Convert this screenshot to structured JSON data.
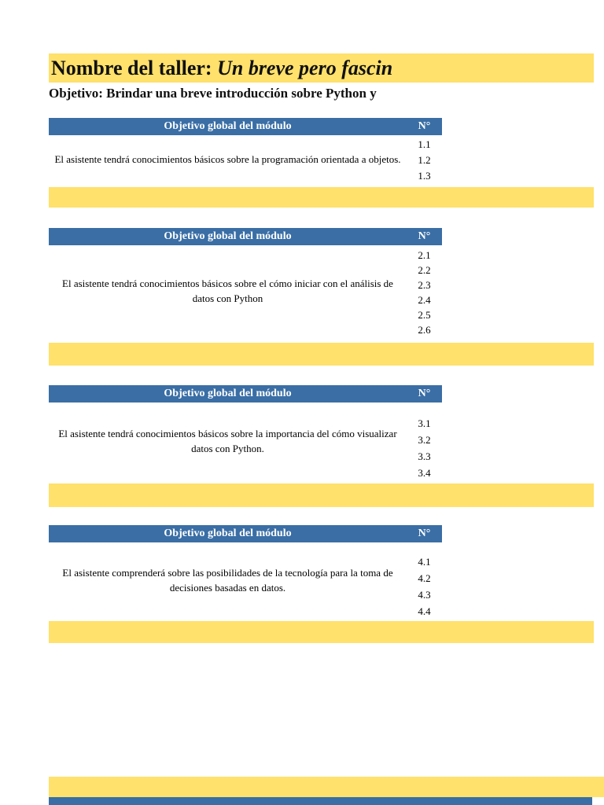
{
  "colors": {
    "banner_yellow": "#FFE16B",
    "header_blue": "#3A6EA5",
    "header_text": "#FFFFFF",
    "body_text": "#000000"
  },
  "title": {
    "prefix": "Nombre del taller: ",
    "name_visible": "Un breve pero fascin"
  },
  "objective_line": "Objetivo: Brindar una breve introducción sobre Python y",
  "table": {
    "header_label": "Objetivo global del módulo",
    "number_col_label": "N°"
  },
  "sections": [
    {
      "objective": "El asistente tendrá conocimientos básicos sobre la programación orientada a objetos.",
      "numbers": [
        "1.1",
        "1.2",
        "1.3"
      ]
    },
    {
      "objective": "El asistente tendrá conocimientos básicos sobre el cómo iniciar con el análisis de datos con Python",
      "numbers": [
        "2.1",
        "2.2",
        "2.3",
        "2.4",
        "2.5",
        "2.6"
      ]
    },
    {
      "objective": "El asistente tendrá conocimientos básicos sobre la importancia del cómo visualizar datos con Python.",
      "numbers": [
        "3.1",
        "3.2",
        "3.3",
        "3.4"
      ]
    },
    {
      "objective": "El asistente comprenderá sobre las posibilidades de la tecnología para la toma de decisiones basadas en datos.",
      "numbers": [
        "4.1",
        "4.2",
        "4.3",
        "4.4"
      ]
    }
  ]
}
